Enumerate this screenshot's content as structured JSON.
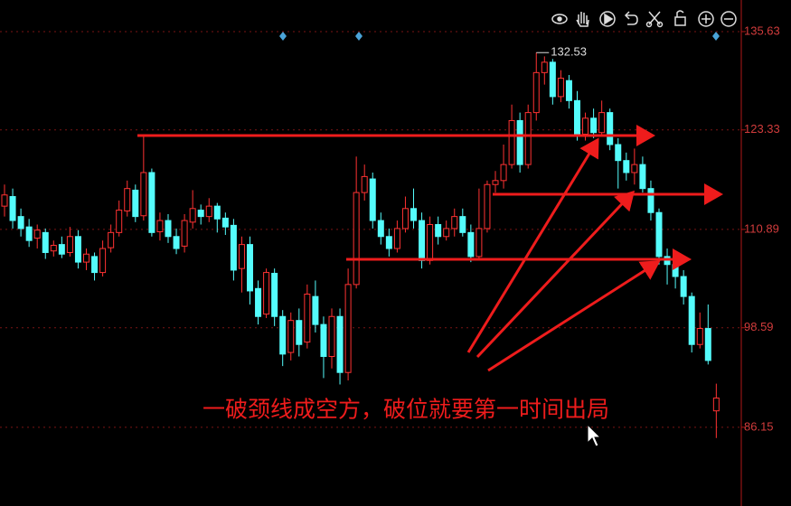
{
  "chart_data": {
    "type": "candlestick",
    "annotation": "一破颈线成空方，破位就要第一时间出局",
    "max_label": 132.53,
    "up_color": "#ff3232",
    "down_color": "#54fcfc",
    "ylim": [
      76.3,
      139.58
    ],
    "yticks": [
      135.63,
      123.33,
      110.89,
      98.59,
      86.15
    ],
    "grid": true,
    "open": [
      113.8,
      115.0,
      112.5,
      111.2,
      109.8,
      110.5,
      108.2,
      109.0,
      108.0,
      110.0,
      106.8,
      107.5,
      105.5,
      108.6,
      110.5,
      113.2,
      115.8,
      112.6,
      118.0,
      110.6,
      112.0,
      110.0,
      108.8,
      111.8,
      113.3,
      112.5,
      113.8,
      112.3,
      111.4,
      106.0,
      109.0,
      103.5,
      100.3,
      105.4,
      100.0,
      95.5,
      99.5,
      96.8,
      102.5,
      99.0,
      95.0,
      100.0,
      93.0,
      104.0,
      115.5,
      117.2,
      112.0,
      110.0,
      108.5,
      111.0,
      113.5,
      112.0,
      107.0,
      111.5,
      110.0,
      111.0,
      112.5,
      110.5,
      107.5,
      111.0,
      116.5,
      117.0,
      119.0,
      124.5,
      119.0,
      125.5,
      130.5,
      131.8,
      127.5,
      129.5,
      127.0,
      122.8,
      124.8,
      123.0,
      125.5,
      121.5,
      119.5,
      118.0,
      119.0,
      116.0,
      113.0,
      107.5,
      106.5,
      105.0,
      102.5,
      96.5,
      98.5,
      88.2
    ],
    "high": [
      116.5,
      116.0,
      113.5,
      112.2,
      111.5,
      111.0,
      109.5,
      110.0,
      111.2,
      110.8,
      108.5,
      108.0,
      109.5,
      111.5,
      114.5,
      117.0,
      116.5,
      122.5,
      118.5,
      113.0,
      112.8,
      111.0,
      112.8,
      115.8,
      114.0,
      114.8,
      114.2,
      113.0,
      112.2,
      110.0,
      110.0,
      104.5,
      106.0,
      106.0,
      100.8,
      100.5,
      101.0,
      104.0,
      104.5,
      100.0,
      101.0,
      101.0,
      106.0,
      120.0,
      119.0,
      118.0,
      113.0,
      111.0,
      112.0,
      115.0,
      116.0,
      113.0,
      112.5,
      112.5,
      112.0,
      113.5,
      113.5,
      111.5,
      116.0,
      117.0,
      118.2,
      121.5,
      126.5,
      125.5,
      126.5,
      133.0,
      132.53,
      132.2,
      130.8,
      130.2,
      128.2,
      125.5,
      126.0,
      127.0,
      126.0,
      122.3,
      120.5,
      121.0,
      120.0,
      117.0,
      113.5,
      108.5,
      107.5,
      105.8,
      103.0,
      100.5,
      101.5,
      91.6
    ],
    "low": [
      112.5,
      111.0,
      110.0,
      108.7,
      108.5,
      107.2,
      107.5,
      107.3,
      107.5,
      106.0,
      105.8,
      104.5,
      105.0,
      108.0,
      110.0,
      112.5,
      111.8,
      112.0,
      110.0,
      109.5,
      109.2,
      107.8,
      108.0,
      111.0,
      111.5,
      111.8,
      110.5,
      110.2,
      104.5,
      103.0,
      101.5,
      99.0,
      99.8,
      98.8,
      93.8,
      94.5,
      95.0,
      96.0,
      98.0,
      92.3,
      93.5,
      91.5,
      92.0,
      103.5,
      114.5,
      111.0,
      109.0,
      107.5,
      108.0,
      110.5,
      111.0,
      106.0,
      106.5,
      109.0,
      109.5,
      110.0,
      110.0,
      106.8,
      107.0,
      110.5,
      115.5,
      116.0,
      118.5,
      118.0,
      118.5,
      124.5,
      129.0,
      126.5,
      126.8,
      126.0,
      122.0,
      122.0,
      122.3,
      122.5,
      120.8,
      116.0,
      117.0,
      116.5,
      115.5,
      112.0,
      106.5,
      104.0,
      103.5,
      101.5,
      95.5,
      96.0,
      94.0,
      84.8
    ],
    "close": [
      115.2,
      112.0,
      111.0,
      109.5,
      110.8,
      108.0,
      108.9,
      107.8,
      110.0,
      106.8,
      107.8,
      105.5,
      108.5,
      110.5,
      113.3,
      116.0,
      112.5,
      118.0,
      110.5,
      112.0,
      110.0,
      108.5,
      112.0,
      113.5,
      112.5,
      113.8,
      112.2,
      111.2,
      105.8,
      109.0,
      103.2,
      100.0,
      105.5,
      100.0,
      95.3,
      99.5,
      96.5,
      102.8,
      99.0,
      95.0,
      100.0,
      93.0,
      104.0,
      115.5,
      117.5,
      112.0,
      110.0,
      108.5,
      111.0,
      113.5,
      112.0,
      107.0,
      111.5,
      110.0,
      111.0,
      112.5,
      110.5,
      107.5,
      111.0,
      116.5,
      117.0,
      119.0,
      124.5,
      119.0,
      125.5,
      130.5,
      131.8,
      127.5,
      129.8,
      127.0,
      122.8,
      124.8,
      123.0,
      125.5,
      121.5,
      119.5,
      118.0,
      119.0,
      116.0,
      113.0,
      107.5,
      106.5,
      105.0,
      102.5,
      96.5,
      98.5,
      94.5,
      89.8
    ]
  }
}
